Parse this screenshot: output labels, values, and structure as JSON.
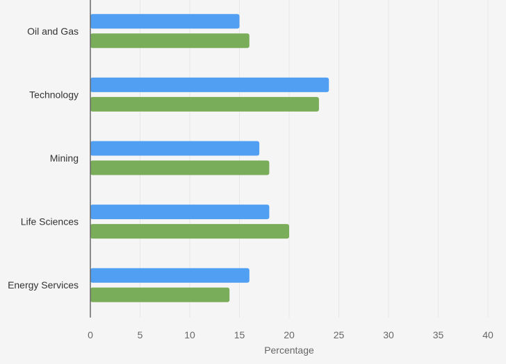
{
  "chart_data": {
    "type": "bar",
    "orientation": "horizontal",
    "categories": [
      "Oil and Gas",
      "Technology",
      "Mining",
      "Life Sciences",
      "Energy Services"
    ],
    "series": [
      {
        "color": "#519ff3",
        "values": [
          15,
          24,
          17,
          18,
          16
        ]
      },
      {
        "color": "#7aad59",
        "values": [
          16,
          23,
          18,
          20,
          14
        ]
      }
    ],
    "xlabel": "Percentage",
    "ylabel": "",
    "xlim": [
      0,
      40
    ],
    "xticks": [
      "0",
      "5",
      "10",
      "15",
      "20",
      "25",
      "30",
      "35",
      "40"
    ],
    "grid": true,
    "legend": "none"
  },
  "colors": {
    "background": "#f5f5f5",
    "grid": "#e6e6e6",
    "axis": "#666666"
  }
}
